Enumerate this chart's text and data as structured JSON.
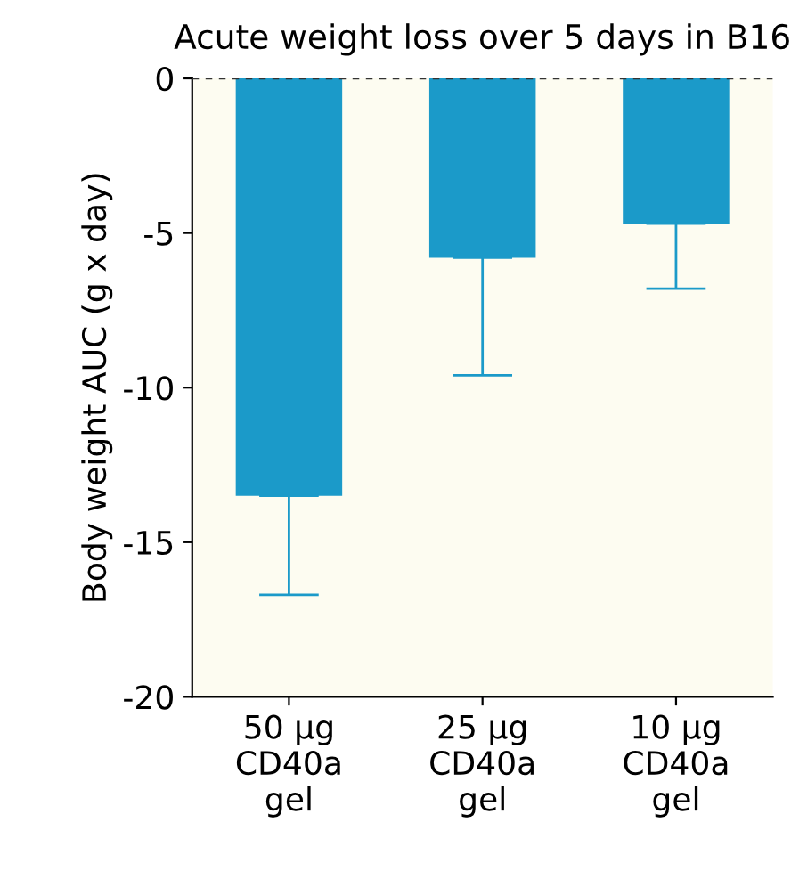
{
  "chart_data": {
    "type": "bar",
    "title": "Acute weight loss over 5 days in B16",
    "ylabel": "Body weight AUC (g x day)",
    "categories": [
      "50 µg\nCD40a\ngel",
      "25 µg\nCD40a\ngel",
      "10 µg\nCD40a\ngel"
    ],
    "values": [
      -13.5,
      -5.8,
      -4.7
    ],
    "color": "#1b9ac9",
    "errors": [
      [
        -16.7,
        -13.5
      ],
      [
        -9.6,
        -5.8
      ],
      [
        -6.8,
        -4.7
      ]
    ],
    "ylim": [
      -20,
      0
    ],
    "yticks": [
      {
        "value": -20,
        "label": "-20"
      },
      {
        "value": -15,
        "label": "-15"
      },
      {
        "value": -10,
        "label": "-10"
      },
      {
        "value": -5,
        "label": "-5"
      },
      0
    ],
    "ref_lines": [
      {
        "axis": "y",
        "value": 0,
        "color": "#333333",
        "line_style": "dashed"
      }
    ],
    "grid": false,
    "legend": false
  }
}
